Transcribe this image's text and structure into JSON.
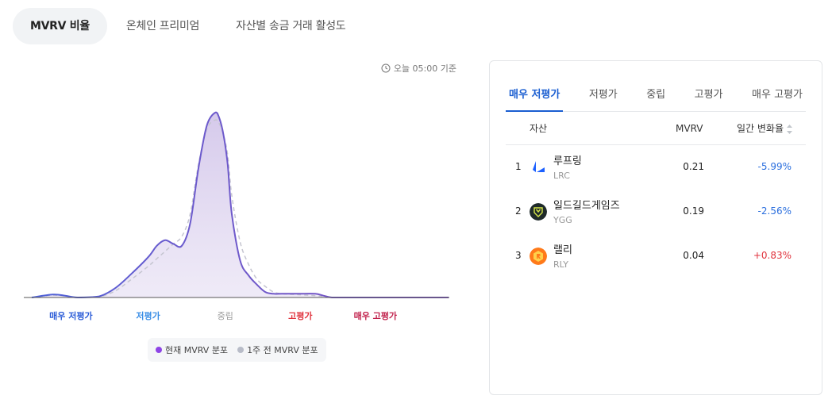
{
  "tabs": [
    {
      "label": "MVRV 비율",
      "active": true
    },
    {
      "label": "온체인 프리미엄",
      "active": false
    },
    {
      "label": "자산별 송금 거래 활성도",
      "active": false
    }
  ],
  "timestamp": {
    "icon": "clock-icon",
    "text": "오늘 05:00 기준"
  },
  "chart_data": {
    "type": "area",
    "categories": [
      "매우 저평가",
      "저평가",
      "중립",
      "고평가",
      "매우 고평가"
    ],
    "category_colors": [
      "#2a5bd7",
      "#3a8ee6",
      "#999999",
      "#e0323c",
      "#c01f4a"
    ],
    "series": [
      {
        "name": "현재 MVRV 분포",
        "color": "#7e57c2",
        "style": "solid",
        "x": [
          0,
          0.05,
          0.08,
          0.11,
          0.16,
          0.2,
          0.24,
          0.28,
          0.3,
          0.32,
          0.34,
          0.36,
          0.38,
          0.4,
          0.42,
          0.44,
          0.45,
          0.46,
          0.47,
          0.48,
          0.5,
          0.52,
          0.54,
          0.56,
          0.58,
          0.6,
          0.64,
          0.68,
          0.7,
          0.72,
          0.76,
          0.8,
          0.9,
          1.0
        ],
        "y": [
          0,
          1.6,
          1,
          0,
          0.5,
          5,
          13,
          22,
          28,
          31,
          29,
          28,
          40,
          70,
          93,
          100,
          97,
          88,
          72,
          45,
          20,
          12,
          7,
          3,
          2,
          2,
          2,
          2,
          1,
          0,
          0,
          0,
          0,
          0
        ]
      },
      {
        "name": "1주 전 MVRV 분포",
        "color": "#c5c5d0",
        "style": "dashed",
        "x": [
          0,
          0.05,
          0.08,
          0.11,
          0.16,
          0.2,
          0.24,
          0.28,
          0.3,
          0.32,
          0.34,
          0.36,
          0.38,
          0.4,
          0.42,
          0.44,
          0.45,
          0.46,
          0.47,
          0.48,
          0.5,
          0.52,
          0.54,
          0.56,
          0.58,
          0.6,
          0.64,
          0.68,
          0.7,
          0.72,
          0.76,
          0.8,
          0.9,
          1.0
        ],
        "y": [
          0,
          1.2,
          0.8,
          0,
          0.4,
          3.5,
          10,
          17,
          21,
          25,
          29,
          33,
          45,
          72,
          91,
          96,
          94,
          88,
          77,
          55,
          30,
          18,
          10,
          6,
          3,
          2,
          1.5,
          1,
          0.5,
          0,
          0,
          0,
          0,
          0
        ]
      }
    ],
    "ylim": [
      0,
      100
    ],
    "legend": "bottom-center"
  },
  "panel": {
    "tabs": [
      {
        "label": "매우 저평가",
        "active": true
      },
      {
        "label": "저평가",
        "active": false
      },
      {
        "label": "중립",
        "active": false
      },
      {
        "label": "고평가",
        "active": false
      },
      {
        "label": "매우 고평가",
        "active": false
      }
    ],
    "headers": {
      "asset": "자산",
      "mvrv": "MVRV",
      "change": "일간 변화율",
      "sort_icon": "sort-icon"
    },
    "rows": [
      {
        "rank": "1",
        "name": "루프링",
        "symbol": "LRC",
        "icon": "loopring-logo-icon",
        "mvrv": "0.21",
        "change": "-5.99%",
        "direction": "neg"
      },
      {
        "rank": "2",
        "name": "일드길드게임즈",
        "symbol": "YGG",
        "icon": "ygg-logo-icon",
        "mvrv": "0.19",
        "change": "-2.56%",
        "direction": "neg"
      },
      {
        "rank": "3",
        "name": "랠리",
        "symbol": "RLY",
        "icon": "rally-logo-icon",
        "mvrv": "0.04",
        "change": "+0.83%",
        "direction": "pos"
      }
    ]
  }
}
